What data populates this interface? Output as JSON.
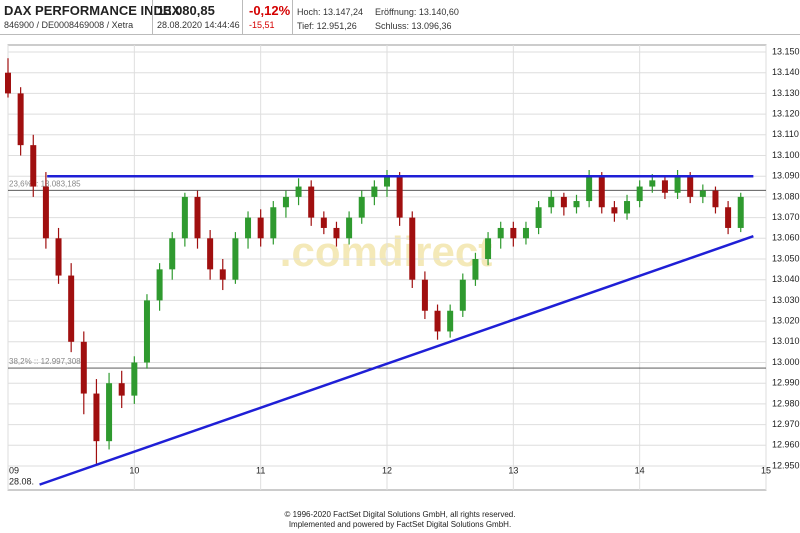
{
  "header": {
    "title": "DAX PERFORMANCE INDEX",
    "subtitle": "846900 / DE0008469008 / Xetra",
    "price": "13.080,85",
    "timestamp": "28.08.2020 14:44:46",
    "change_pct": "-0,12%",
    "change_abs": "-15,51",
    "high": "Hoch: 13.147,24",
    "open": "Eröffnung: 13.140,60",
    "low": "Tief: 12.951,26",
    "close": "Schluss: 13.096,36"
  },
  "chart_data": {
    "type": "candlestick",
    "up_color": "#2f9a2f",
    "down_color": "#a00f0f",
    "grid": true,
    "x": [
      9.0,
      9.1,
      9.2,
      9.3,
      9.4,
      9.5,
      9.6,
      9.7,
      9.8,
      9.9,
      10.0,
      10.1,
      10.2,
      10.3,
      10.4,
      10.5,
      10.6,
      10.7,
      10.8,
      10.9,
      11.0,
      11.1,
      11.2,
      11.3,
      11.4,
      11.5,
      11.6,
      11.7,
      11.8,
      11.9,
      12.0,
      12.1,
      12.2,
      12.3,
      12.4,
      12.5,
      12.6,
      12.7,
      12.8,
      12.9,
      13.0,
      13.1,
      13.2,
      13.3,
      13.4,
      13.5,
      13.6,
      13.7,
      13.8,
      13.9,
      14.0,
      14.1,
      14.2,
      14.3,
      14.4,
      14.5,
      14.6,
      14.7,
      14.8
    ],
    "open": [
      13140,
      13130,
      13105,
      13085,
      13060,
      13042,
      13010,
      12985,
      12962,
      12990,
      12984,
      13000,
      13030,
      13045,
      13060,
      13080,
      13060,
      13045,
      13040,
      13060,
      13070,
      13060,
      13075,
      13080,
      13085,
      13070,
      13065,
      13060,
      13070,
      13080,
      13085,
      13090,
      13070,
      13040,
      13025,
      13015,
      13025,
      13040,
      13050,
      13060,
      13065,
      13060,
      13065,
      13075,
      13080,
      13075,
      13078,
      13090,
      13075,
      13072,
      13078,
      13085,
      13088,
      13082,
      13090,
      13080,
      13083,
      13075,
      13065
    ],
    "high": [
      13147,
      13133,
      13110,
      13092,
      13065,
      13048,
      13015,
      12992,
      12995,
      12996,
      13003,
      13033,
      13048,
      13063,
      13082,
      13083,
      13064,
      13050,
      13063,
      13073,
      13074,
      13078,
      13083,
      13089,
      13088,
      13073,
      13068,
      13073,
      13083,
      13088,
      13093,
      13092,
      13073,
      13044,
      13028,
      13028,
      13043,
      13053,
      13063,
      13068,
      13068,
      13068,
      13078,
      13083,
      13082,
      13081,
      13093,
      13092,
      13078,
      13081,
      13088,
      13091,
      13090,
      13093,
      13092,
      13086,
      13085,
      13078,
      13082
    ],
    "low": [
      13128,
      13100,
      13080,
      13055,
      13038,
      13005,
      12975,
      12951,
      12958,
      12978,
      12980,
      12997,
      13025,
      13040,
      13056,
      13055,
      13040,
      13035,
      13038,
      13055,
      13056,
      13057,
      13070,
      13076,
      13066,
      13062,
      13056,
      13057,
      13067,
      13076,
      13080,
      13066,
      13036,
      13021,
      13011,
      13012,
      13022,
      13037,
      13047,
      13055,
      13056,
      13057,
      13062,
      13072,
      13071,
      13072,
      13075,
      13072,
      13068,
      13069,
      13075,
      13082,
      13079,
      13079,
      13077,
      13077,
      13072,
      13062,
      13063
    ],
    "close": [
      13130,
      13105,
      13085,
      13060,
      13042,
      13010,
      12985,
      12962,
      12990,
      12984,
      13000,
      13030,
      13045,
      13060,
      13080,
      13060,
      13045,
      13040,
      13060,
      13070,
      13060,
      13075,
      13080,
      13085,
      13070,
      13065,
      13060,
      13070,
      13080,
      13085,
      13090,
      13070,
      13040,
      13025,
      13015,
      13025,
      13040,
      13050,
      13060,
      13065,
      13060,
      13065,
      13075,
      13080,
      13075,
      13078,
      13090,
      13075,
      13072,
      13078,
      13085,
      13088,
      13082,
      13090,
      13080,
      13083,
      13075,
      13065,
      13080
    ],
    "xlim": [
      9,
      15
    ],
    "xticks": [
      {
        "value": 9,
        "label": "09"
      },
      10,
      11,
      12,
      13,
      14,
      15
    ],
    "x_sublabel": "28.08.",
    "ylim": [
      12950,
      13150
    ],
    "yticks": [
      {
        "value": 12950,
        "label": "12.950"
      },
      {
        "value": 12960,
        "label": "12.960"
      },
      {
        "value": 12970,
        "label": "12.970"
      },
      {
        "value": 12980,
        "label": "12.980"
      },
      {
        "value": 12990,
        "label": "12.990"
      },
      {
        "value": 13000,
        "label": "13.000"
      },
      {
        "value": 13010,
        "label": "13.010"
      },
      {
        "value": 13020,
        "label": "13.020"
      },
      {
        "value": 13030,
        "label": "13.030"
      },
      {
        "value": 13040,
        "label": "13.040"
      },
      {
        "value": 13050,
        "label": "13.050"
      },
      {
        "value": 13060,
        "label": "13.060"
      },
      {
        "value": 13070,
        "label": "13.070"
      },
      {
        "value": 13080,
        "label": "13.080"
      },
      {
        "value": 13090,
        "label": "13.090"
      },
      {
        "value": 13100,
        "label": "13.100"
      },
      {
        "value": 13110,
        "label": "13.110"
      },
      {
        "value": 13120,
        "label": "13.120"
      },
      {
        "value": 13130,
        "label": "13.130"
      },
      {
        "value": 13140,
        "label": "13.140"
      },
      {
        "value": 13150,
        "label": "13.150"
      }
    ],
    "levels": [
      {
        "value": 13083.185,
        "label": "23,6% :: 13.083,185"
      },
      {
        "value": 12997.308,
        "label": "38,2% :: 12.997,308"
      }
    ],
    "trendlines": [
      {
        "x": [
          9.31,
          14.9
        ],
        "y": [
          13090,
          13090
        ],
        "color": "#1f1fd6"
      },
      {
        "x": [
          9.25,
          14.9
        ],
        "y": [
          12941,
          13061
        ],
        "color": "#1f1fd6"
      }
    ],
    "watermark": ".comdirect"
  },
  "footer": [
    "© 1996-2020 FactSet Digital Solutions GmbH, all rights reserved.",
    "Implemented and powered by FactSet Digital Solutions GmbH."
  ]
}
